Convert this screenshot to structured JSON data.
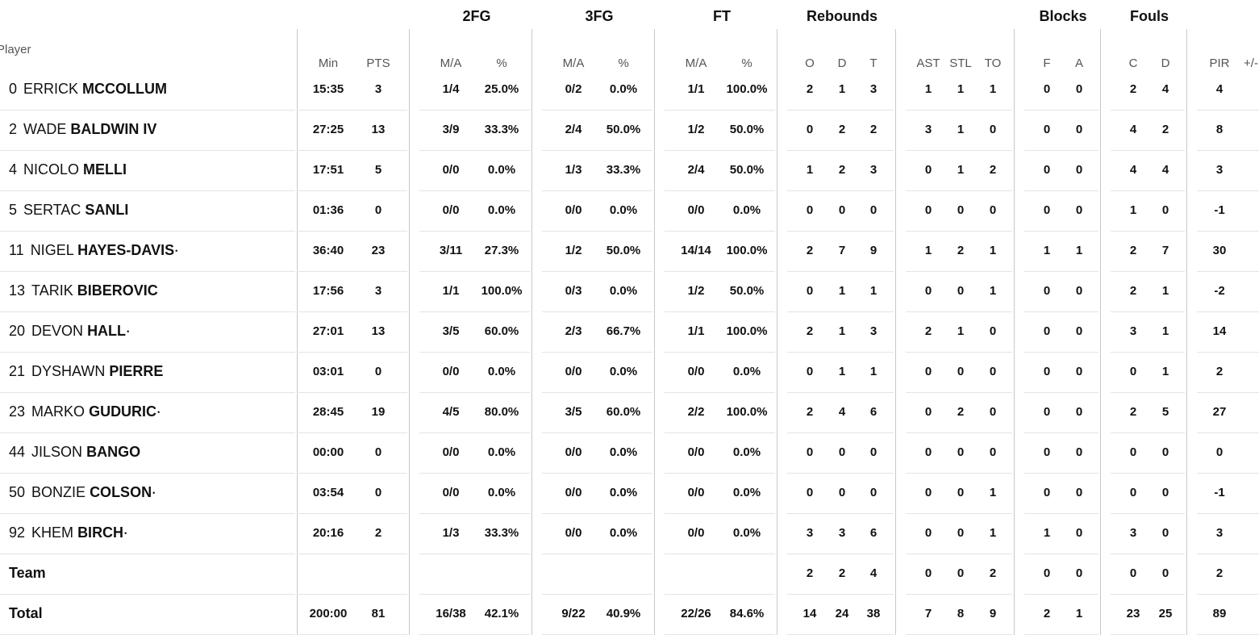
{
  "header": {
    "player_label": "Player",
    "groups": [
      {
        "label": "2FG",
        "x": 591
      },
      {
        "label": "3FG",
        "x": 743
      },
      {
        "label": "FT",
        "x": 895
      },
      {
        "label": "Rebounds",
        "x": 1044
      },
      {
        "label": "Blocks",
        "x": 1318
      },
      {
        "label": "Fouls",
        "x": 1425
      }
    ],
    "columns": [
      "Min",
      "PTS",
      "M/A",
      "%",
      "M/A",
      "%",
      "M/A",
      "%",
      "O",
      "D",
      "T",
      "AST",
      "STL",
      "TO",
      "F",
      "A",
      "C",
      "D",
      "PIR",
      "+/-"
    ]
  },
  "rows": [
    {
      "num": "0",
      "first": "ERRICK",
      "last": "MCCOLLUM",
      "starter": "",
      "stats": [
        "15:35",
        "3",
        "1/4",
        "25.0%",
        "0/2",
        "0.0%",
        "1/1",
        "100.0%",
        "2",
        "1",
        "3",
        "1",
        "1",
        "1",
        "0",
        "0",
        "2",
        "4",
        "4",
        ""
      ]
    },
    {
      "num": "2",
      "first": "WADE",
      "last": "BALDWIN IV",
      "starter": "",
      "stats": [
        "27:25",
        "13",
        "3/9",
        "33.3%",
        "2/4",
        "50.0%",
        "1/2",
        "50.0%",
        "0",
        "2",
        "2",
        "3",
        "1",
        "0",
        "0",
        "0",
        "4",
        "2",
        "8",
        ""
      ]
    },
    {
      "num": "4",
      "first": "NICOLO",
      "last": "MELLI",
      "starter": "",
      "stats": [
        "17:51",
        "5",
        "0/0",
        "0.0%",
        "1/3",
        "33.3%",
        "2/4",
        "50.0%",
        "1",
        "2",
        "3",
        "0",
        "1",
        "2",
        "0",
        "0",
        "4",
        "4",
        "3",
        ""
      ]
    },
    {
      "num": "5",
      "first": "SERTAC",
      "last": "SANLI",
      "starter": "",
      "stats": [
        "01:36",
        "0",
        "0/0",
        "0.0%",
        "0/0",
        "0.0%",
        "0/0",
        "0.0%",
        "0",
        "0",
        "0",
        "0",
        "0",
        "0",
        "0",
        "0",
        "1",
        "0",
        "-1",
        ""
      ]
    },
    {
      "num": "11",
      "first": "NIGEL",
      "last": "HAYES-DAVIS",
      "starter": "•",
      "stats": [
        "36:40",
        "23",
        "3/11",
        "27.3%",
        "1/2",
        "50.0%",
        "14/14",
        "100.0%",
        "2",
        "7",
        "9",
        "1",
        "2",
        "1",
        "1",
        "1",
        "2",
        "7",
        "30",
        ""
      ]
    },
    {
      "num": "13",
      "first": "TARIK",
      "last": "BIBEROVIC",
      "starter": "",
      "stats": [
        "17:56",
        "3",
        "1/1",
        "100.0%",
        "0/3",
        "0.0%",
        "1/2",
        "50.0%",
        "0",
        "1",
        "1",
        "0",
        "0",
        "1",
        "0",
        "0",
        "2",
        "1",
        "-2",
        ""
      ]
    },
    {
      "num": "20",
      "first": "DEVON",
      "last": "HALL",
      "starter": "•",
      "stats": [
        "27:01",
        "13",
        "3/5",
        "60.0%",
        "2/3",
        "66.7%",
        "1/1",
        "100.0%",
        "2",
        "1",
        "3",
        "2",
        "1",
        "0",
        "0",
        "0",
        "3",
        "1",
        "14",
        ""
      ]
    },
    {
      "num": "21",
      "first": "DYSHAWN",
      "last": "PIERRE",
      "starter": "",
      "stats": [
        "03:01",
        "0",
        "0/0",
        "0.0%",
        "0/0",
        "0.0%",
        "0/0",
        "0.0%",
        "0",
        "1",
        "1",
        "0",
        "0",
        "0",
        "0",
        "0",
        "0",
        "1",
        "2",
        ""
      ]
    },
    {
      "num": "23",
      "first": "MARKO",
      "last": "GUDURIC",
      "starter": "•",
      "stats": [
        "28:45",
        "19",
        "4/5",
        "80.0%",
        "3/5",
        "60.0%",
        "2/2",
        "100.0%",
        "2",
        "4",
        "6",
        "0",
        "2",
        "0",
        "0",
        "0",
        "2",
        "5",
        "27",
        ""
      ]
    },
    {
      "num": "44",
      "first": "JILSON",
      "last": "BANGO",
      "starter": "",
      "stats": [
        "00:00",
        "0",
        "0/0",
        "0.0%",
        "0/0",
        "0.0%",
        "0/0",
        "0.0%",
        "0",
        "0",
        "0",
        "0",
        "0",
        "0",
        "0",
        "0",
        "0",
        "0",
        "0",
        ""
      ]
    },
    {
      "num": "50",
      "first": "BONZIE",
      "last": "COLSON",
      "starter": "•",
      "stats": [
        "03:54",
        "0",
        "0/0",
        "0.0%",
        "0/0",
        "0.0%",
        "0/0",
        "0.0%",
        "0",
        "0",
        "0",
        "0",
        "0",
        "1",
        "0",
        "0",
        "0",
        "0",
        "-1",
        ""
      ]
    },
    {
      "num": "92",
      "first": "KHEM",
      "last": "BIRCH",
      "starter": "•",
      "stats": [
        "20:16",
        "2",
        "1/3",
        "33.3%",
        "0/0",
        "0.0%",
        "0/0",
        "0.0%",
        "3",
        "3",
        "6",
        "0",
        "0",
        "1",
        "1",
        "0",
        "3",
        "0",
        "3",
        ""
      ]
    }
  ],
  "team": {
    "label": "Team",
    "stats": [
      "",
      "",
      "",
      "",
      "",
      "",
      "",
      "",
      "2",
      "2",
      "4",
      "0",
      "0",
      "2",
      "0",
      "0",
      "0",
      "0",
      "2",
      ""
    ]
  },
  "total": {
    "label": "Total",
    "stats": [
      "200:00",
      "81",
      "16/38",
      "42.1%",
      "9/22",
      "40.9%",
      "22/26",
      "84.6%",
      "14",
      "24",
      "38",
      "7",
      "8",
      "9",
      "2",
      "1",
      "23",
      "25",
      "89",
      ""
    ]
  }
}
